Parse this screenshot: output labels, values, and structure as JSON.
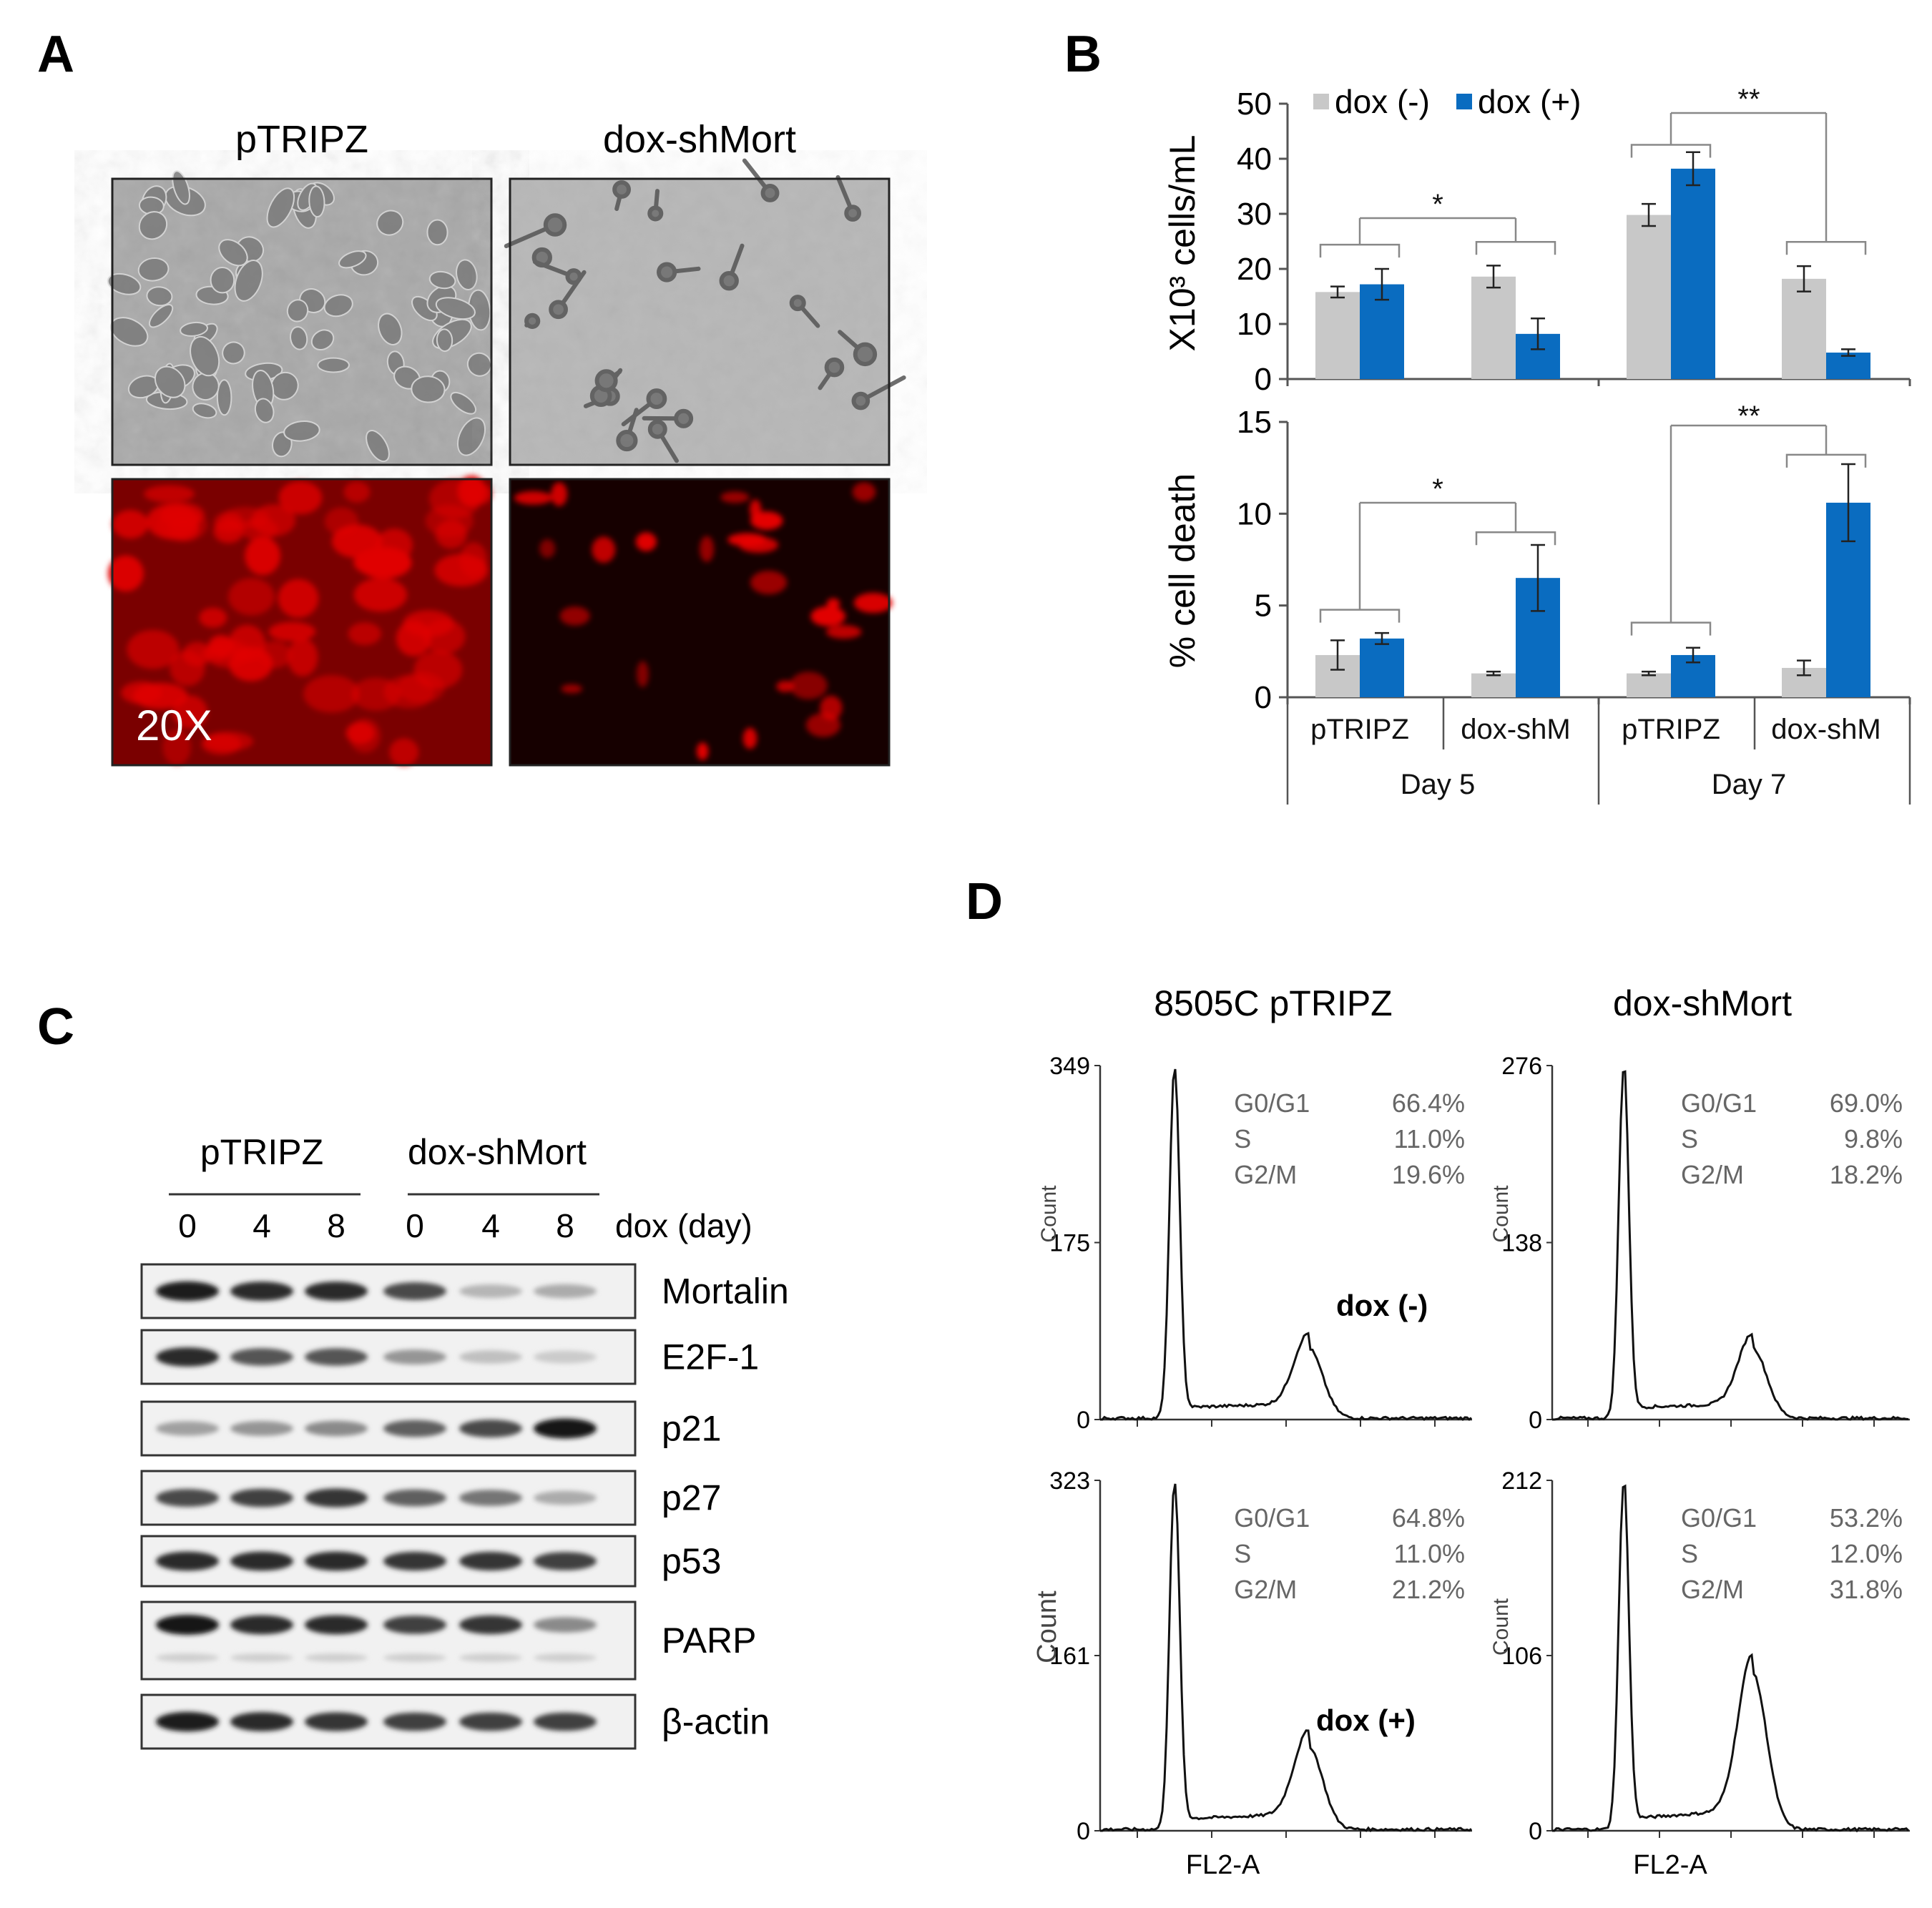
{
  "panel_letters": [
    "A",
    "B",
    "C",
    "D"
  ],
  "panel_a": {
    "col_titles": [
      "pTRIPZ",
      "dox-shMort"
    ],
    "magnification": "20X"
  },
  "chart_data": [
    {
      "type": "bar",
      "ylabel": "X10³ cells/mL",
      "ylim": [
        0,
        50
      ],
      "yticks": [
        0,
        10,
        20,
        30,
        40,
        50
      ],
      "categories": [
        "pTRIPZ",
        "dox-shM",
        "pTRIPZ",
        "dox-shM"
      ],
      "groups": [
        "Day 5",
        "Day 7"
      ],
      "series": [
        {
          "name": "dox (-)",
          "color": "#c8c8c8",
          "values": [
            15.8,
            18.6,
            29.8,
            18.2
          ],
          "errors": [
            1.0,
            2.0,
            2.0,
            2.3
          ]
        },
        {
          "name": "dox (+)",
          "color": "#0a6cc0",
          "values": [
            17.2,
            8.2,
            38.2,
            4.8
          ],
          "errors": [
            2.8,
            2.8,
            3.0,
            0.6
          ]
        }
      ],
      "legend": "top",
      "significance": [
        {
          "group": "Day 5",
          "label": "*"
        },
        {
          "group": "Day 7",
          "label": "**"
        }
      ]
    },
    {
      "type": "bar",
      "ylabel": "% cell death",
      "ylim": [
        0,
        15
      ],
      "yticks": [
        0,
        5,
        10,
        15
      ],
      "categories": [
        "pTRIPZ",
        "dox-shM",
        "pTRIPZ",
        "dox-shM"
      ],
      "groups": [
        "Day 5",
        "Day 7"
      ],
      "series": [
        {
          "name": "dox (-)",
          "color": "#c8c8c8",
          "values": [
            2.3,
            1.3,
            1.3,
            1.6
          ],
          "errors": [
            0.8,
            0.1,
            0.1,
            0.4
          ]
        },
        {
          "name": "dox (+)",
          "color": "#0a6cc0",
          "values": [
            3.2,
            6.5,
            2.3,
            10.6
          ],
          "errors": [
            0.3,
            1.8,
            0.4,
            2.1
          ]
        }
      ],
      "significance": [
        {
          "group": "Day 5",
          "label": "*"
        },
        {
          "group": "Day 7",
          "label": "**"
        }
      ]
    }
  ],
  "panel_c": {
    "groups": [
      "pTRIPZ",
      "dox-shMort"
    ],
    "lanes": [
      "0",
      "4",
      "8",
      "0",
      "4",
      "8"
    ],
    "lane_axis_label": "dox (day)",
    "blots": [
      {
        "label": "Mortalin",
        "intensities": [
          0.95,
          0.9,
          0.9,
          0.75,
          0.25,
          0.3
        ]
      },
      {
        "label": "E2F-1",
        "intensities": [
          0.9,
          0.7,
          0.7,
          0.4,
          0.2,
          0.15
        ]
      },
      {
        "label": "p21",
        "intensities": [
          0.35,
          0.4,
          0.45,
          0.65,
          0.75,
          1.0
        ]
      },
      {
        "label": "p27",
        "intensities": [
          0.75,
          0.8,
          0.85,
          0.65,
          0.55,
          0.3
        ]
      },
      {
        "label": "p53",
        "intensities": [
          0.9,
          0.9,
          0.9,
          0.85,
          0.85,
          0.8
        ]
      },
      {
        "label": "PARP",
        "intensities": [
          1.0,
          0.9,
          0.9,
          0.8,
          0.85,
          0.45
        ]
      },
      {
        "label": "β-actin",
        "intensities": [
          0.95,
          0.9,
          0.85,
          0.8,
          0.8,
          0.8
        ]
      }
    ]
  },
  "panel_d": {
    "col_titles": [
      "8505C pTRIPZ",
      "dox-shMort"
    ],
    "row_labels": [
      "dox (-)",
      "dox (+)"
    ],
    "ylabel": "Count",
    "xlabel": "FL2-A",
    "phase_names": [
      "G0/G1",
      "S",
      "G2/M"
    ],
    "histograms": [
      {
        "ymax": "349",
        "ymid": "175",
        "yzero": "0",
        "g0g1": "66.4%",
        "s": "11.0%",
        "g2m": "19.6%",
        "g2_ratio": 0.2
      },
      {
        "ymax": "276",
        "ymid": "138",
        "yzero": "0",
        "g0g1": "69.0%",
        "s": "9.8%",
        "g2m": "18.2%",
        "g2_ratio": 0.2
      },
      {
        "ymax": "323",
        "ymid": "161",
        "yzero": "0",
        "g0g1": "64.8%",
        "s": "11.0%",
        "g2m": "21.2%",
        "g2_ratio": 0.24
      },
      {
        "ymax": "212",
        "ymid": "106",
        "yzero": "0",
        "g0g1": "53.2%",
        "s": "12.0%",
        "g2m": "31.8%",
        "g2_ratio": 0.45
      }
    ]
  }
}
